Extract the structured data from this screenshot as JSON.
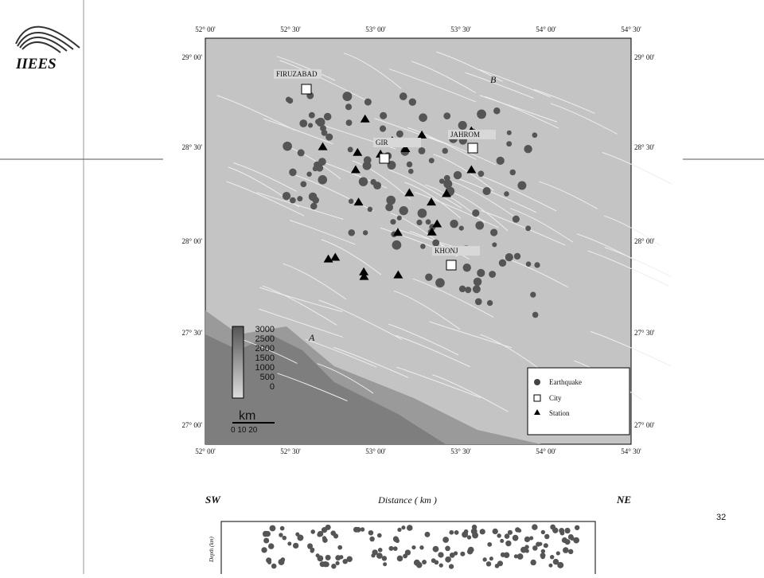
{
  "logo": {
    "text": "IIEES"
  },
  "map": {
    "lon_labels": [
      "52° 00'",
      "52° 30'",
      "53° 00'",
      "53° 30'",
      "54° 00'",
      "54° 30'"
    ],
    "lat_labels": [
      "29° 00'",
      "28° 30'",
      "28° 00'",
      "27° 30'",
      "27° 00'"
    ],
    "cities": [
      "FIRUZABAD",
      "GIR",
      "JAHROM",
      "KHONJ"
    ],
    "points": [
      "A",
      "B"
    ],
    "elevation_labels": [
      "3000",
      "2500",
      "2000",
      "1500",
      "1000",
      "500",
      "0"
    ],
    "scale_unit": "km",
    "scale_ticks": "0 10 20",
    "legend": [
      "Earthquake",
      "City",
      "Station"
    ]
  },
  "section": {
    "left": "SW",
    "title": "Distance ( km )",
    "right": "NE",
    "y_label": "Depth (km)"
  },
  "page_number": "32"
}
